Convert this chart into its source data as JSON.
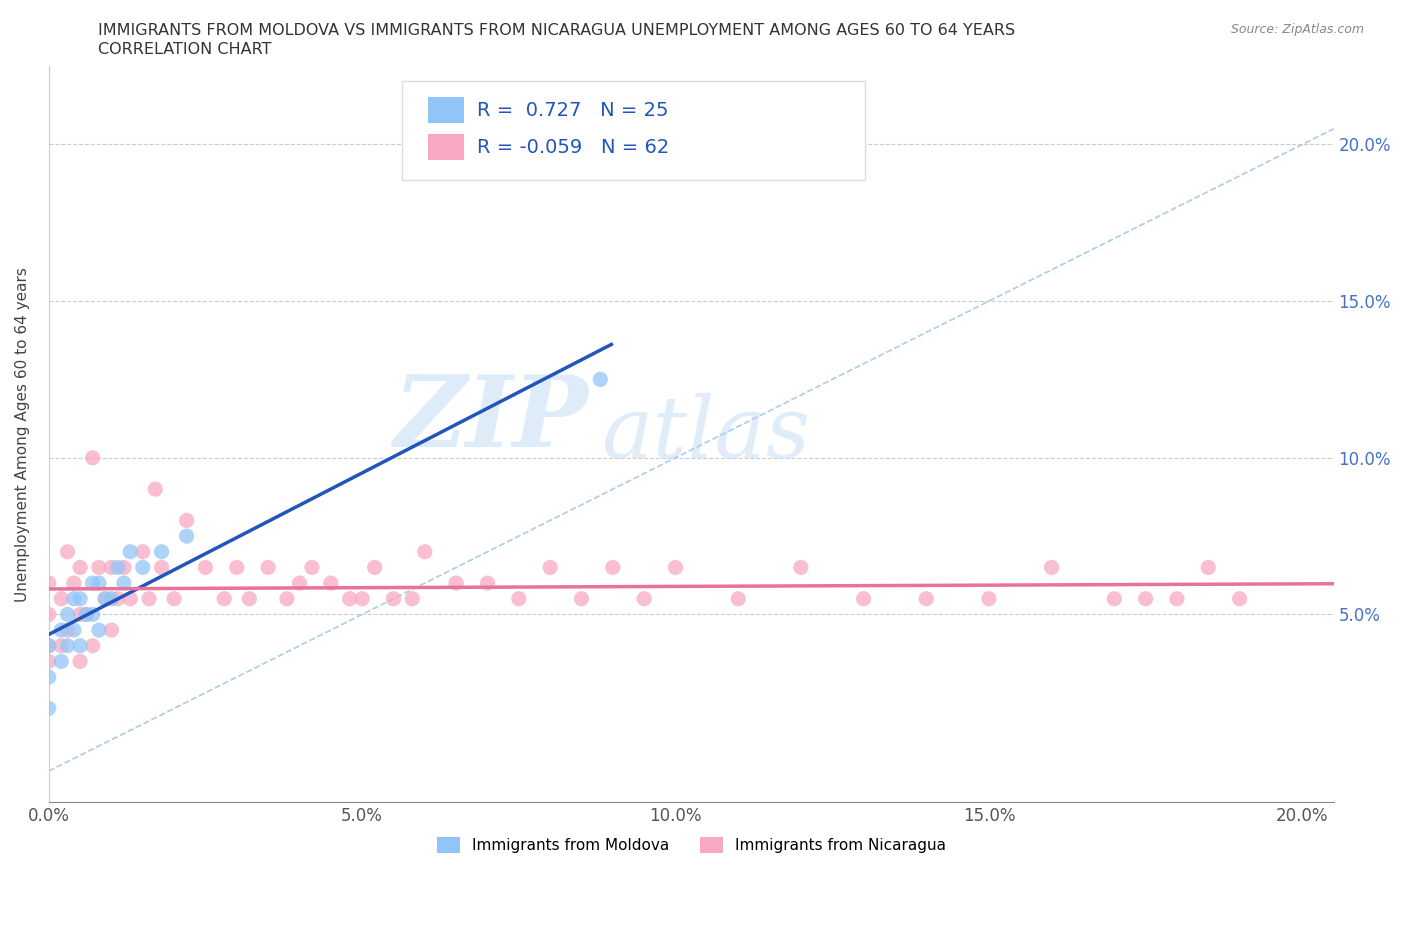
{
  "title_line1": "IMMIGRANTS FROM MOLDOVA VS IMMIGRANTS FROM NICARAGUA UNEMPLOYMENT AMONG AGES 60 TO 64 YEARS",
  "title_line2": "CORRELATION CHART",
  "source_text": "Source: ZipAtlas.com",
  "ylabel": "Unemployment Among Ages 60 to 64 years",
  "xlim": [
    0.0,
    0.205
  ],
  "ylim": [
    -0.01,
    0.225
  ],
  "xtick_labels": [
    "0.0%",
    "5.0%",
    "10.0%",
    "15.0%",
    "20.0%"
  ],
  "xtick_vals": [
    0.0,
    0.05,
    0.1,
    0.15,
    0.2
  ],
  "ytick_labels": [
    "5.0%",
    "10.0%",
    "15.0%",
    "20.0%"
  ],
  "ytick_vals": [
    0.05,
    0.1,
    0.15,
    0.2
  ],
  "moldova_color": "#92C5F7",
  "nicaragua_color": "#F9A8C2",
  "moldova_line_color": "#2255BB",
  "nicaragua_line_color": "#E8729A",
  "diag_color": "#AACCEE",
  "moldova_R": 0.727,
  "moldova_N": 25,
  "nicaragua_R": -0.059,
  "nicaragua_N": 62,
  "watermark_zip": "ZIP",
  "watermark_atlas": "atlas",
  "moldova_scatter_x": [
    0.0,
    0.0,
    0.0,
    0.002,
    0.002,
    0.003,
    0.003,
    0.004,
    0.004,
    0.005,
    0.005,
    0.006,
    0.007,
    0.007,
    0.008,
    0.008,
    0.009,
    0.01,
    0.011,
    0.012,
    0.013,
    0.015,
    0.018,
    0.022,
    0.088
  ],
  "moldova_scatter_y": [
    0.02,
    0.03,
    0.04,
    0.035,
    0.045,
    0.04,
    0.05,
    0.045,
    0.055,
    0.04,
    0.055,
    0.05,
    0.05,
    0.06,
    0.045,
    0.06,
    0.055,
    0.055,
    0.065,
    0.06,
    0.07,
    0.065,
    0.07,
    0.075,
    0.125
  ],
  "nicaragua_scatter_x": [
    0.0,
    0.0,
    0.0,
    0.0,
    0.002,
    0.002,
    0.003,
    0.003,
    0.004,
    0.005,
    0.005,
    0.005,
    0.006,
    0.007,
    0.007,
    0.008,
    0.009,
    0.01,
    0.01,
    0.011,
    0.012,
    0.013,
    0.015,
    0.016,
    0.017,
    0.018,
    0.02,
    0.022,
    0.025,
    0.028,
    0.03,
    0.032,
    0.035,
    0.038,
    0.04,
    0.042,
    0.045,
    0.048,
    0.05,
    0.052,
    0.055,
    0.058,
    0.06,
    0.065,
    0.07,
    0.075,
    0.08,
    0.085,
    0.09,
    0.095,
    0.1,
    0.11,
    0.12,
    0.13,
    0.14,
    0.15,
    0.16,
    0.17,
    0.175,
    0.18,
    0.185,
    0.19
  ],
  "nicaragua_scatter_y": [
    0.035,
    0.04,
    0.05,
    0.06,
    0.04,
    0.055,
    0.045,
    0.07,
    0.06,
    0.035,
    0.05,
    0.065,
    0.05,
    0.04,
    0.1,
    0.065,
    0.055,
    0.045,
    0.065,
    0.055,
    0.065,
    0.055,
    0.07,
    0.055,
    0.09,
    0.065,
    0.055,
    0.08,
    0.065,
    0.055,
    0.065,
    0.055,
    0.065,
    0.055,
    0.06,
    0.065,
    0.06,
    0.055,
    0.055,
    0.065,
    0.055,
    0.055,
    0.07,
    0.06,
    0.06,
    0.055,
    0.065,
    0.055,
    0.065,
    0.055,
    0.065,
    0.055,
    0.065,
    0.055,
    0.055,
    0.055,
    0.065,
    0.055,
    0.055,
    0.055,
    0.065,
    0.055
  ]
}
